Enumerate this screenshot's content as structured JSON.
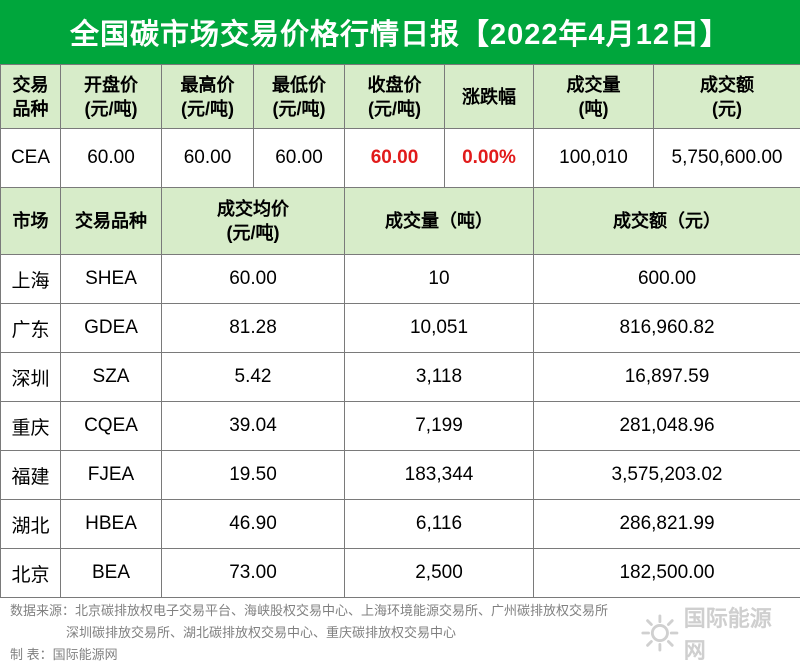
{
  "title": "全国碳市场交易价格行情日报【2022年4月12日】",
  "national": {
    "headers": [
      [
        "交易",
        "品种"
      ],
      [
        "开盘价",
        "(元/吨)"
      ],
      [
        "最高价",
        "(元/吨)"
      ],
      [
        "最低价",
        "(元/吨)"
      ],
      [
        "收盘价",
        "(元/吨)"
      ],
      [
        "涨跌幅"
      ],
      [
        "成交量",
        "(吨)"
      ],
      [
        "成交额",
        "(元)"
      ]
    ],
    "row": [
      "CEA",
      "60.00",
      "60.00",
      "60.00",
      "60.00",
      "0.00%",
      "100,010",
      "5,750,600.00"
    ]
  },
  "regional": {
    "headers": [
      [
        "市场"
      ],
      [
        "交易品种"
      ],
      [
        "成交均价",
        "(元/吨)"
      ],
      [
        "成交量（吨）"
      ],
      [
        "成交额（元）"
      ]
    ],
    "rows": [
      [
        "上海",
        "SHEA",
        "60.00",
        "10",
        "600.00"
      ],
      [
        "广东",
        "GDEA",
        "81.28",
        "10,051",
        "816,960.82"
      ],
      [
        "深圳",
        "SZA",
        "5.42",
        "3,118",
        "16,897.59"
      ],
      [
        "重庆",
        "CQEA",
        "39.04",
        "7,199",
        "281,048.96"
      ],
      [
        "福建",
        "FJEA",
        "19.50",
        "183,344",
        "3,575,203.02"
      ],
      [
        "湖北",
        "HBEA",
        "46.90",
        "6,116",
        "286,821.99"
      ],
      [
        "北京",
        "BEA",
        "73.00",
        "2,500",
        "182,500.00"
      ]
    ]
  },
  "footer": {
    "source_line1": "数据来源：北京碳排放权电子交易平台、海峡股权交易中心、上海环境能源交易所、广州碳排放权交易所",
    "source_line2": "深圳碳排放交易所、湖北碳排放权交易中心、重庆碳排放权交易中心",
    "maker": "制      表：国际能源网"
  },
  "watermark": "国际能源网",
  "colors": {
    "title_bg": "#00a63c",
    "header_bg": "#d7ecc9",
    "highlight": "#e11b1b"
  }
}
